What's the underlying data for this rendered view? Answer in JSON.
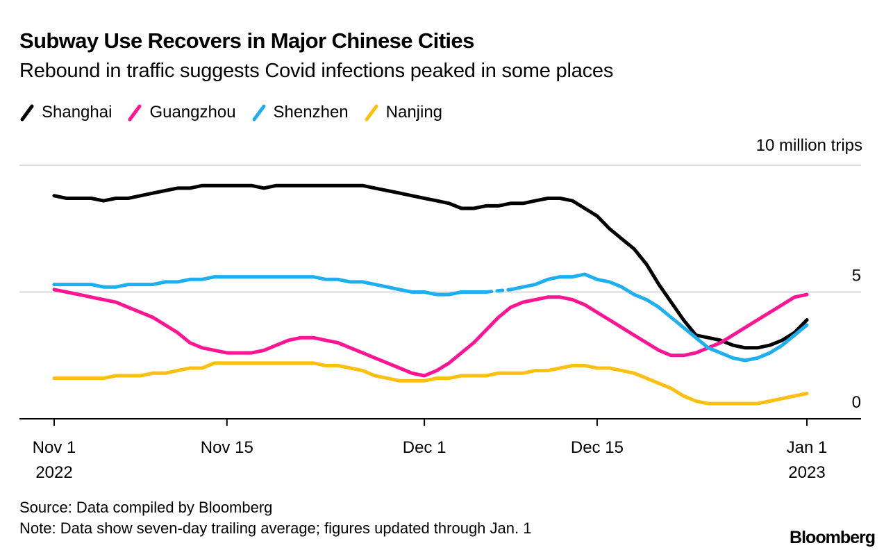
{
  "chart_data": {
    "type": "line",
    "title": "Subway Use Recovers in Major Chinese Cities",
    "subtitle": "Rebound in traffic suggests Covid infections peaked in some places",
    "unit_label": "10 million trips",
    "xlabel": "",
    "ylabel": "10 million trips",
    "x_start": "2022-11-01",
    "x_end": "2023-01-01",
    "x_ticks": [
      {
        "day": 0,
        "label": "Nov 1",
        "sublabel": "2022"
      },
      {
        "day": 14,
        "label": "Nov 15",
        "sublabel": ""
      },
      {
        "day": 30,
        "label": "Dec 1",
        "sublabel": ""
      },
      {
        "day": 44,
        "label": "Dec 15",
        "sublabel": ""
      },
      {
        "day": 61,
        "label": "Jan 1",
        "sublabel": "2023"
      }
    ],
    "y_ticks": [
      {
        "value": 0,
        "label": "0"
      },
      {
        "value": 5,
        "label": "5"
      },
      {
        "value": 10,
        "label": ""
      }
    ],
    "ylim": [
      0,
      10
    ],
    "grid": true,
    "legend_position": "top-left",
    "series": [
      {
        "name": "Shanghai",
        "color": "#000000",
        "values": [
          8.8,
          8.7,
          8.7,
          8.7,
          8.6,
          8.7,
          8.7,
          8.8,
          8.9,
          9.0,
          9.1,
          9.1,
          9.2,
          9.2,
          9.2,
          9.2,
          9.2,
          9.1,
          9.2,
          9.2,
          9.2,
          9.2,
          9.2,
          9.2,
          9.2,
          9.2,
          9.1,
          9.0,
          8.9,
          8.8,
          8.7,
          8.6,
          8.5,
          8.3,
          8.3,
          8.4,
          8.4,
          8.5,
          8.5,
          8.6,
          8.7,
          8.7,
          8.6,
          8.3,
          8.0,
          7.5,
          7.1,
          6.7,
          6.1,
          5.3,
          4.6,
          3.9,
          3.3,
          3.2,
          3.1,
          2.9,
          2.8,
          2.8,
          2.9,
          3.1,
          3.4,
          3.9
        ]
      },
      {
        "name": "Guangzhou",
        "color": "#ff1493",
        "values": [
          5.1,
          5.0,
          4.9,
          4.8,
          4.7,
          4.6,
          4.4,
          4.2,
          4.0,
          3.7,
          3.4,
          3.0,
          2.8,
          2.7,
          2.6,
          2.6,
          2.6,
          2.7,
          2.9,
          3.1,
          3.2,
          3.2,
          3.1,
          3.0,
          2.8,
          2.6,
          2.4,
          2.2,
          2.0,
          1.8,
          1.7,
          1.9,
          2.2,
          2.6,
          3.0,
          3.5,
          4.0,
          4.4,
          4.6,
          4.7,
          4.8,
          4.8,
          4.7,
          4.5,
          4.2,
          3.9,
          3.6,
          3.3,
          3.0,
          2.7,
          2.5,
          2.5,
          2.6,
          2.8,
          3.0,
          3.3,
          3.6,
          3.9,
          4.2,
          4.5,
          4.8,
          4.9
        ]
      },
      {
        "name": "Shenzhen",
        "color": "#1eaff0",
        "values": [
          5.3,
          5.3,
          5.3,
          5.3,
          5.2,
          5.2,
          5.3,
          5.3,
          5.3,
          5.4,
          5.4,
          5.5,
          5.5,
          5.6,
          5.6,
          5.6,
          5.6,
          5.6,
          5.6,
          5.6,
          5.6,
          5.6,
          5.5,
          5.5,
          5.4,
          5.4,
          5.3,
          5.2,
          5.1,
          5.0,
          5.0,
          4.9,
          4.9,
          5.0,
          5.0,
          5.0,
          null,
          5.1,
          5.2,
          5.3,
          5.5,
          5.6,
          5.6,
          5.7,
          5.5,
          5.4,
          5.2,
          4.9,
          4.7,
          4.4,
          4.0,
          3.6,
          3.2,
          2.8,
          2.6,
          2.4,
          2.3,
          2.4,
          2.6,
          2.9,
          3.3,
          3.7
        ]
      },
      {
        "name": "Nanjing",
        "color": "#fdc010",
        "values": [
          1.6,
          1.6,
          1.6,
          1.6,
          1.6,
          1.7,
          1.7,
          1.7,
          1.8,
          1.8,
          1.9,
          2.0,
          2.0,
          2.2,
          2.2,
          2.2,
          2.2,
          2.2,
          2.2,
          2.2,
          2.2,
          2.2,
          2.1,
          2.1,
          2.0,
          1.9,
          1.7,
          1.6,
          1.5,
          1.5,
          1.5,
          1.6,
          1.6,
          1.7,
          1.7,
          1.7,
          1.8,
          1.8,
          1.8,
          1.9,
          1.9,
          2.0,
          2.1,
          2.1,
          2.0,
          2.0,
          1.9,
          1.8,
          1.6,
          1.4,
          1.2,
          0.9,
          0.7,
          0.6,
          0.6,
          0.6,
          0.6,
          0.6,
          0.7,
          0.8,
          0.9,
          1.0
        ]
      }
    ],
    "dashed_gap_series": "Shenzhen",
    "source": "Source: Data compiled by Bloomberg",
    "note": "Note: Data show seven-day trailing average; figures updated through Jan. 1",
    "brand": "Bloomberg"
  }
}
